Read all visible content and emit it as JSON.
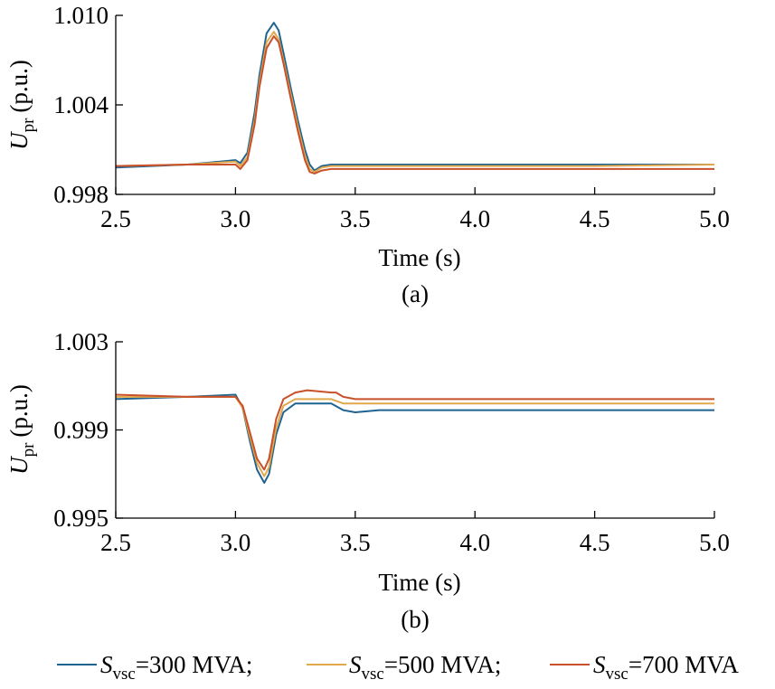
{
  "chart_data": [
    {
      "panel": "(a)",
      "type": "line",
      "xlabel": "Time (s)",
      "ylabel_main": "U",
      "ylabel_sub": "pr",
      "ylabel_unit": "(p.u.)",
      "xlim": [
        2.5,
        5.0
      ],
      "ylim": [
        0.998,
        1.01
      ],
      "xticks": [
        "2.5",
        "3.0",
        "3.5",
        "4.0",
        "4.5",
        "5.0"
      ],
      "yticks": [
        "0.998",
        "1.004",
        "1.010"
      ],
      "series": [
        {
          "color": "#1f6391",
          "x": [
            2.5,
            2.8,
            3.0,
            3.02,
            3.05,
            3.08,
            3.1,
            3.13,
            3.16,
            3.18,
            3.2,
            3.23,
            3.26,
            3.29,
            3.31,
            3.33,
            3.36,
            3.4,
            3.5,
            3.8,
            4.0,
            4.5,
            5.0
          ],
          "y": [
            0.9998,
            1.0,
            1.0003,
            1.0001,
            1.0008,
            1.0035,
            1.006,
            1.0088,
            1.0095,
            1.009,
            1.0075,
            1.0052,
            1.003,
            1.001,
            1.0,
            0.9996,
            0.9999,
            1.0,
            1.0,
            1.0,
            1.0,
            1.0,
            1.0
          ]
        },
        {
          "color": "#e2a84c",
          "x": [
            2.5,
            2.8,
            3.0,
            3.02,
            3.05,
            3.08,
            3.1,
            3.13,
            3.16,
            3.18,
            3.2,
            3.23,
            3.26,
            3.29,
            3.31,
            3.33,
            3.36,
            3.4,
            3.5,
            3.8,
            4.0,
            4.5,
            5.0
          ],
          "y": [
            0.9999,
            1.0,
            1.0002,
            0.9999,
            1.0005,
            1.003,
            1.0055,
            1.0082,
            1.0089,
            1.0084,
            1.007,
            1.0048,
            1.0026,
            1.0006,
            0.9997,
            0.9995,
            0.9998,
            0.9999,
            0.9999,
            0.9999,
            0.9999,
            0.9999,
            1.0
          ]
        },
        {
          "color": "#c8502a",
          "x": [
            2.5,
            2.8,
            3.0,
            3.02,
            3.05,
            3.08,
            3.1,
            3.13,
            3.16,
            3.18,
            3.2,
            3.23,
            3.26,
            3.29,
            3.31,
            3.33,
            3.36,
            3.4,
            3.5,
            3.8,
            4.0,
            4.5,
            5.0
          ],
          "y": [
            0.9999,
            1.0,
            1.0,
            0.9997,
            1.0003,
            1.0027,
            1.0052,
            1.0078,
            1.0086,
            1.0082,
            1.0068,
            1.0045,
            1.0023,
            1.0003,
            0.9995,
            0.9994,
            0.9996,
            0.9997,
            0.9997,
            0.9997,
            0.9997,
            0.9997,
            0.9997
          ]
        }
      ]
    },
    {
      "panel": "(b)",
      "type": "line",
      "xlabel": "Time (s)",
      "ylabel_main": "U",
      "ylabel_sub": "pr",
      "ylabel_unit": "(p.u.)",
      "xlim": [
        2.5,
        5.0
      ],
      "ylim": [
        0.995,
        1.003
      ],
      "xticks": [
        "2.5",
        "3.0",
        "3.5",
        "4.0",
        "4.5",
        "5.0"
      ],
      "yticks": [
        "0.995",
        "0.999",
        "1.003"
      ],
      "series": [
        {
          "color": "#1f6391",
          "x": [
            2.5,
            2.8,
            3.0,
            3.03,
            3.06,
            3.09,
            3.12,
            3.14,
            3.17,
            3.2,
            3.25,
            3.3,
            3.4,
            3.45,
            3.5,
            3.6,
            4.0,
            4.5,
            5.0
          ],
          "y": [
            1.0004,
            1.0005,
            1.0006,
            1.0,
            0.9985,
            0.9972,
            0.9966,
            0.997,
            0.9988,
            0.9998,
            1.0002,
            1.0002,
            1.0002,
            0.9999,
            0.9998,
            0.9999,
            0.9999,
            0.9999,
            0.9999
          ]
        },
        {
          "color": "#e2a84c",
          "x": [
            2.5,
            2.8,
            3.0,
            3.03,
            3.06,
            3.09,
            3.12,
            3.14,
            3.17,
            3.2,
            3.25,
            3.3,
            3.4,
            3.45,
            3.5,
            3.6,
            4.0,
            4.5,
            5.0
          ],
          "y": [
            1.0005,
            1.0005,
            1.0005,
            1.0,
            0.9987,
            0.9975,
            0.9969,
            0.9973,
            0.9991,
            1.0001,
            1.0004,
            1.0004,
            1.0004,
            1.0002,
            1.0002,
            1.0002,
            1.0002,
            1.0002,
            1.0002
          ]
        },
        {
          "color": "#c8502a",
          "x": [
            2.5,
            2.8,
            3.0,
            3.03,
            3.06,
            3.09,
            3.12,
            3.14,
            3.17,
            3.2,
            3.25,
            3.3,
            3.4,
            3.42,
            3.45,
            3.5,
            3.6,
            4.0,
            4.5,
            5.0
          ],
          "y": [
            1.0006,
            1.0005,
            1.0005,
            1.0001,
            0.9989,
            0.9977,
            0.9972,
            0.9977,
            0.9995,
            1.0004,
            1.0007,
            1.0008,
            1.0007,
            1.0007,
            1.0005,
            1.0004,
            1.0004,
            1.0004,
            1.0004,
            1.0004
          ]
        }
      ]
    }
  ],
  "legend": {
    "items": [
      {
        "main": "S",
        "sub": "vsc",
        "rest": "=300 MVA;",
        "color": "#1f6391"
      },
      {
        "main": "S",
        "sub": "vsc",
        "rest": "=500 MVA;",
        "color": "#e2a84c"
      },
      {
        "main": "S",
        "sub": "vsc",
        "rest": "=700 MVA",
        "color": "#c8502a"
      }
    ]
  }
}
